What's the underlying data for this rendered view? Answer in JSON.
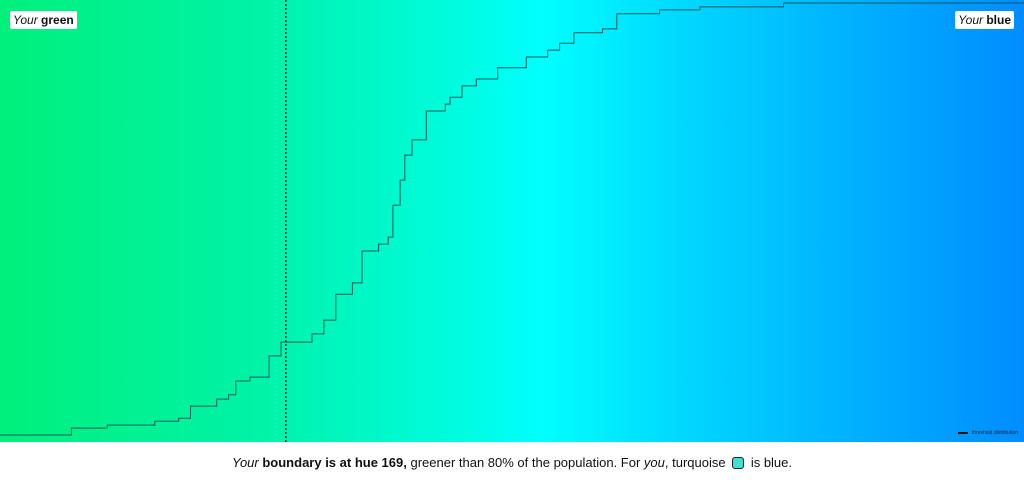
{
  "chart_data": {
    "type": "line",
    "step": true,
    "xlabel": "",
    "ylabel": "",
    "xlim": [
      157,
      200
    ],
    "ylim": [
      0,
      1
    ],
    "grid": false,
    "legend_placement": "bottom-right",
    "series": [
      {
        "name": "threshold distribution",
        "color": "#0d5c5c",
        "x": [
          157.0,
          160.0,
          161.5,
          163.5,
          164.5,
          165.0,
          166.1,
          166.6,
          166.9,
          167.5,
          168.3,
          168.8,
          170.1,
          170.6,
          171.1,
          171.8,
          172.2,
          172.9,
          173.3,
          173.5,
          173.8,
          174.0,
          174.3,
          174.9,
          175.7,
          175.9,
          176.4,
          177.0,
          177.9,
          179.1,
          180.0,
          180.5,
          181.1,
          182.3,
          182.9,
          184.7,
          186.4,
          189.9,
          200.0
        ],
        "y": [
          0,
          0.016,
          0.023,
          0.032,
          0.039,
          0.067,
          0.083,
          0.093,
          0.125,
          0.134,
          0.183,
          0.215,
          0.234,
          0.266,
          0.326,
          0.352,
          0.426,
          0.442,
          0.458,
          0.532,
          0.59,
          0.648,
          0.683,
          0.75,
          0.766,
          0.782,
          0.808,
          0.824,
          0.85,
          0.875,
          0.891,
          0.907,
          0.931,
          0.94,
          0.975,
          0.984,
          0.991,
          1.0,
          1.0
        ]
      }
    ],
    "boundary": {
      "hue": 169,
      "style": "dotted"
    },
    "annotations": {
      "left": {
        "italic": "Your",
        "bold": "green"
      },
      "right": {
        "italic": "Your",
        "bold": "blue"
      }
    },
    "legend": [
      "threshold distribution"
    ]
  },
  "caption": {
    "your": "Your",
    "bold": "boundary is at hue 169,",
    "mid": " greener than 80% of the population. For ",
    "you": "you",
    "after_you": ", turquoise",
    "end": " is blue.",
    "swatch_color": "#40e0d0"
  }
}
